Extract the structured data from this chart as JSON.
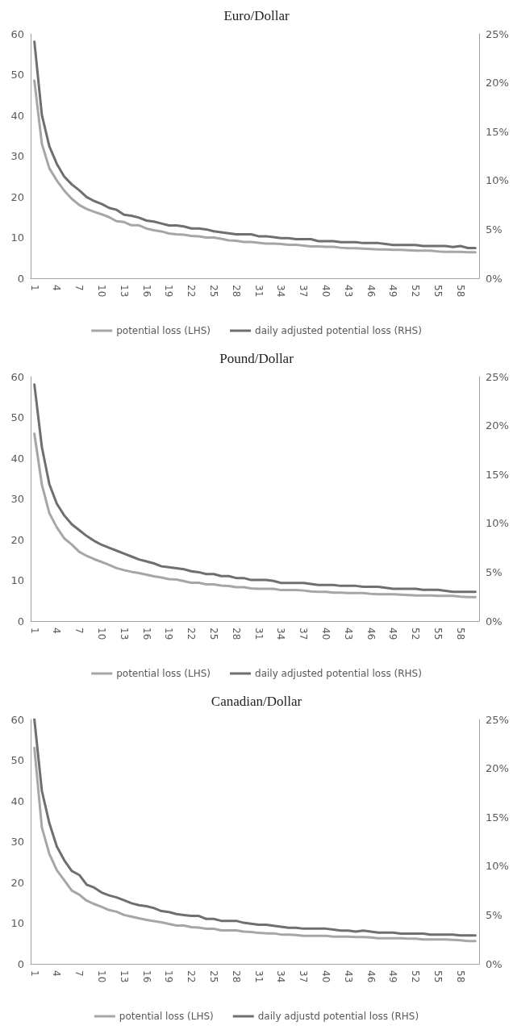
{
  "chart_data": [
    {
      "type": "line",
      "title": "Euro/Dollar",
      "legend": "bottom",
      "grid": false,
      "marker": "none",
      "line_style": "solid",
      "categories": [
        "1",
        null,
        null,
        "4",
        null,
        null,
        "7",
        null,
        null,
        "10",
        null,
        null,
        "13",
        null,
        null,
        "16",
        null,
        null,
        "19",
        null,
        null,
        "22",
        null,
        null,
        "25",
        null,
        null,
        "28",
        null,
        null,
        "31",
        null,
        null,
        "34",
        null,
        null,
        "37",
        null,
        null,
        "40",
        null,
        null,
        "43",
        null,
        null,
        "46",
        null,
        null,
        "49",
        null,
        null,
        "52",
        null,
        null,
        "55",
        null,
        null,
        "58",
        null,
        null
      ],
      "ylim": [
        0,
        60
      ],
      "yticks": [
        0,
        10,
        20,
        30,
        40,
        50,
        60
      ],
      "y2lim": [
        0,
        25
      ],
      "y2ticks": [
        {
          "value": 0,
          "label": "0%"
        },
        {
          "value": 5,
          "label": "5%"
        },
        {
          "value": 10,
          "label": "10%"
        },
        {
          "value": 15,
          "label": "15%"
        },
        {
          "value": 20,
          "label": "20%"
        },
        {
          "value": 25,
          "label": "25%"
        }
      ],
      "series": [
        {
          "name": "potential loss (LHS)",
          "color": "#a6a6a6",
          "values": [
            48.5,
            33,
            27,
            24,
            21.5,
            19.5,
            18,
            17,
            16.3,
            15.7,
            15,
            14,
            13.8,
            13,
            13,
            12.2,
            11.8,
            11.5,
            11,
            10.8,
            10.7,
            10.4,
            10.3,
            10,
            10,
            9.7,
            9.3,
            9.2,
            8.9,
            8.9,
            8.7,
            8.5,
            8.5,
            8.4,
            8.2,
            8.2,
            8.0,
            7.8,
            7.8,
            7.7,
            7.7,
            7.5,
            7.4,
            7.4,
            7.3,
            7.2,
            7.1,
            7.1,
            7.0,
            7.0,
            6.9,
            6.8,
            6.8,
            6.8,
            6.6,
            6.5,
            6.5,
            6.5,
            6.4,
            6.4
          ]
        },
        {
          "name": "daily adjusted potential loss (RHS)",
          "color": "#6f6f6f",
          "axis": "y2",
          "values": [
            24.2,
            16.7,
            13.5,
            11.7,
            10.4,
            9.6,
            9.0,
            8.3,
            7.9,
            7.6,
            7.2,
            7.0,
            6.5,
            6.4,
            6.2,
            5.9,
            5.8,
            5.6,
            5.4,
            5.4,
            5.3,
            5.1,
            5.1,
            5.0,
            4.8,
            4.7,
            4.6,
            4.5,
            4.5,
            4.5,
            4.3,
            4.3,
            4.2,
            4.1,
            4.1,
            4.0,
            4.0,
            4.0,
            3.8,
            3.8,
            3.8,
            3.7,
            3.7,
            3.7,
            3.6,
            3.6,
            3.6,
            3.5,
            3.4,
            3.4,
            3.4,
            3.4,
            3.3,
            3.3,
            3.3,
            3.3,
            3.2,
            3.3,
            3.1,
            3.1
          ]
        }
      ]
    },
    {
      "type": "line",
      "title": "Pound/Dollar",
      "legend": "bottom",
      "grid": false,
      "marker": "none",
      "line_style": "solid",
      "categories": [
        "1",
        null,
        null,
        "4",
        null,
        null,
        "7",
        null,
        null,
        "10",
        null,
        null,
        "13",
        null,
        null,
        "16",
        null,
        null,
        "19",
        null,
        null,
        "22",
        null,
        null,
        "25",
        null,
        null,
        "28",
        null,
        null,
        "31",
        null,
        null,
        "34",
        null,
        null,
        "37",
        null,
        null,
        "40",
        null,
        null,
        "43",
        null,
        null,
        "46",
        null,
        null,
        "49",
        null,
        null,
        "52",
        null,
        null,
        "55",
        null,
        null,
        "58",
        null,
        null
      ],
      "ylim": [
        0,
        60
      ],
      "yticks": [
        0,
        10,
        20,
        30,
        40,
        50,
        60
      ],
      "y2lim": [
        0,
        25
      ],
      "y2ticks": [
        {
          "value": 0,
          "label": "0%"
        },
        {
          "value": 5,
          "label": "5%"
        },
        {
          "value": 10,
          "label": "10%"
        },
        {
          "value": 15,
          "label": "15%"
        },
        {
          "value": 20,
          "label": "20%"
        },
        {
          "value": 25,
          "label": "25%"
        }
      ],
      "series": [
        {
          "name": "potential loss (LHS)",
          "color": "#a6a6a6",
          "values": [
            46,
            33.5,
            26.5,
            23,
            20.3,
            18.8,
            17,
            16,
            15.2,
            14.5,
            13.8,
            13,
            12.5,
            12.1,
            11.8,
            11.4,
            11,
            10.7,
            10.3,
            10.2,
            9.8,
            9.4,
            9.4,
            9.0,
            9.0,
            8.7,
            8.6,
            8.3,
            8.3,
            8.0,
            7.9,
            7.9,
            7.9,
            7.6,
            7.6,
            7.6,
            7.5,
            7.3,
            7.2,
            7.2,
            7.0,
            7.0,
            6.9,
            6.9,
            6.9,
            6.7,
            6.6,
            6.6,
            6.6,
            6.5,
            6.4,
            6.3,
            6.3,
            6.3,
            6.2,
            6.2,
            6.2,
            6.0,
            5.9,
            5.9
          ]
        },
        {
          "name": "daily adjusted potential loss (RHS)",
          "color": "#6f6f6f",
          "axis": "y2",
          "values": [
            24.2,
            17.8,
            14.0,
            12.0,
            10.8,
            9.9,
            9.3,
            8.7,
            8.2,
            7.8,
            7.5,
            7.2,
            6.9,
            6.6,
            6.3,
            6.1,
            5.9,
            5.6,
            5.5,
            5.4,
            5.3,
            5.1,
            5.0,
            4.8,
            4.8,
            4.6,
            4.6,
            4.4,
            4.4,
            4.2,
            4.2,
            4.2,
            4.1,
            3.9,
            3.9,
            3.9,
            3.9,
            3.8,
            3.7,
            3.7,
            3.7,
            3.6,
            3.6,
            3.6,
            3.5,
            3.5,
            3.5,
            3.4,
            3.3,
            3.3,
            3.3,
            3.3,
            3.2,
            3.2,
            3.2,
            3.1,
            3.0,
            3.0,
            3.0,
            3.0
          ]
        }
      ]
    },
    {
      "type": "line",
      "title": "Canadian/Dollar",
      "legend": "bottom",
      "grid": false,
      "marker": "none",
      "line_style": "solid",
      "categories": [
        "1",
        null,
        null,
        "4",
        null,
        null,
        "7",
        null,
        null,
        "10",
        null,
        null,
        "13",
        null,
        null,
        "16",
        null,
        null,
        "19",
        null,
        null,
        "22",
        null,
        null,
        "25",
        null,
        null,
        "28",
        null,
        null,
        "31",
        null,
        null,
        "34",
        null,
        null,
        "37",
        null,
        null,
        "40",
        null,
        null,
        "43",
        null,
        null,
        "46",
        null,
        null,
        "49",
        null,
        null,
        "52",
        null,
        null,
        "55",
        null,
        null,
        "58",
        null,
        null
      ],
      "ylim": [
        0,
        60
      ],
      "yticks": [
        0,
        10,
        20,
        30,
        40,
        50,
        60
      ],
      "y2lim": [
        0,
        25
      ],
      "y2ticks": [
        {
          "value": 0,
          "label": "0%"
        },
        {
          "value": 5,
          "label": "5%"
        },
        {
          "value": 10,
          "label": "10%"
        },
        {
          "value": 15,
          "label": "15%"
        },
        {
          "value": 20,
          "label": "20%"
        },
        {
          "value": 25,
          "label": "25%"
        }
      ],
      "series": [
        {
          "name": "potential loss (LHS)",
          "color": "#a6a6a6",
          "values": [
            53,
            33.5,
            27,
            23,
            20.5,
            18,
            17,
            15.5,
            14.7,
            14,
            13.2,
            12.8,
            12,
            11.6,
            11.2,
            10.8,
            10.5,
            10.2,
            9.8,
            9.4,
            9.4,
            9.0,
            8.9,
            8.6,
            8.6,
            8.2,
            8.2,
            8.2,
            7.9,
            7.8,
            7.6,
            7.5,
            7.5,
            7.2,
            7.2,
            7.1,
            6.9,
            6.9,
            6.9,
            6.9,
            6.7,
            6.7,
            6.7,
            6.6,
            6.6,
            6.5,
            6.3,
            6.3,
            6.3,
            6.3,
            6.2,
            6.2,
            6.0,
            6.0,
            6.0,
            6.0,
            5.9,
            5.8,
            5.6,
            5.6
          ]
        },
        {
          "name": "daily adjustd potential loss (RHS)",
          "color": "#6f6f6f",
          "axis": "y2",
          "values": [
            25,
            17.7,
            14.4,
            12.0,
            10.6,
            9.5,
            9.1,
            8.1,
            7.8,
            7.3,
            7.0,
            6.8,
            6.5,
            6.2,
            6.0,
            5.9,
            5.7,
            5.4,
            5.3,
            5.1,
            5.0,
            4.9,
            4.9,
            4.6,
            4.6,
            4.4,
            4.4,
            4.4,
            4.2,
            4.1,
            4.0,
            4.0,
            3.9,
            3.8,
            3.7,
            3.7,
            3.6,
            3.6,
            3.6,
            3.6,
            3.5,
            3.4,
            3.4,
            3.3,
            3.4,
            3.3,
            3.2,
            3.2,
            3.2,
            3.1,
            3.1,
            3.1,
            3.1,
            3.0,
            3.0,
            3.0,
            3.0,
            2.9,
            2.9,
            2.9
          ]
        }
      ]
    }
  ]
}
